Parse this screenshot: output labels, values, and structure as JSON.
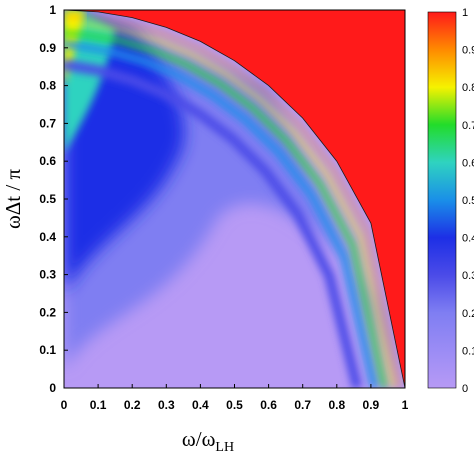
{
  "chart_data": {
    "type": "heatmap",
    "xlabel": {
      "main": "ω/ω",
      "sub": "LH"
    },
    "ylabel": "ωΔt / π",
    "xlim": [
      0,
      1
    ],
    "ylim": [
      0,
      1
    ],
    "x_ticks": [
      "0",
      "0.1",
      "0.2",
      "0.3",
      "0.4",
      "0.5",
      "0.6",
      "0.7",
      "0.8",
      "0.9",
      "1"
    ],
    "y_ticks": [
      "0",
      "0.1",
      "0.2",
      "0.3",
      "0.4",
      "0.5",
      "0.6",
      "0.7",
      "0.8",
      "0.9",
      "1"
    ],
    "colorbar": {
      "range": [
        0,
        1
      ],
      "tick_labels": [
        "0",
        "0.1",
        "0.2",
        "0.3",
        "0.4",
        "0.5",
        "0.6",
        "0.7",
        "0.8",
        "0.9",
        "1"
      ],
      "colors": [
        "#b79af5",
        "#9b8cf5",
        "#7f7ef2",
        "#4b4be8",
        "#1d2fe6",
        "#1a8fe8",
        "#2fd3c0",
        "#22dc2a",
        "#f6f200",
        "#ff8a00",
        "#ff1a1a"
      ]
    },
    "regions": [
      {
        "name": "saturated region above boundary curve",
        "value": 1
      },
      {
        "name": "peak near origin of y axis at y=1",
        "value": 0.85
      },
      {
        "name": "bright band along boundary",
        "value": 0.6
      },
      {
        "name": "lower-right floor",
        "value": 0.02
      }
    ],
    "boundary_curve": {
      "x": [
        0,
        0.1,
        0.2,
        0.3,
        0.4,
        0.5,
        0.6,
        0.7,
        0.8,
        0.9,
        1
      ],
      "y": [
        1,
        0.995,
        0.98,
        0.954,
        0.917,
        0.866,
        0.8,
        0.714,
        0.6,
        0.436,
        0
      ]
    },
    "grid": false,
    "legend": "colorbar-right"
  }
}
